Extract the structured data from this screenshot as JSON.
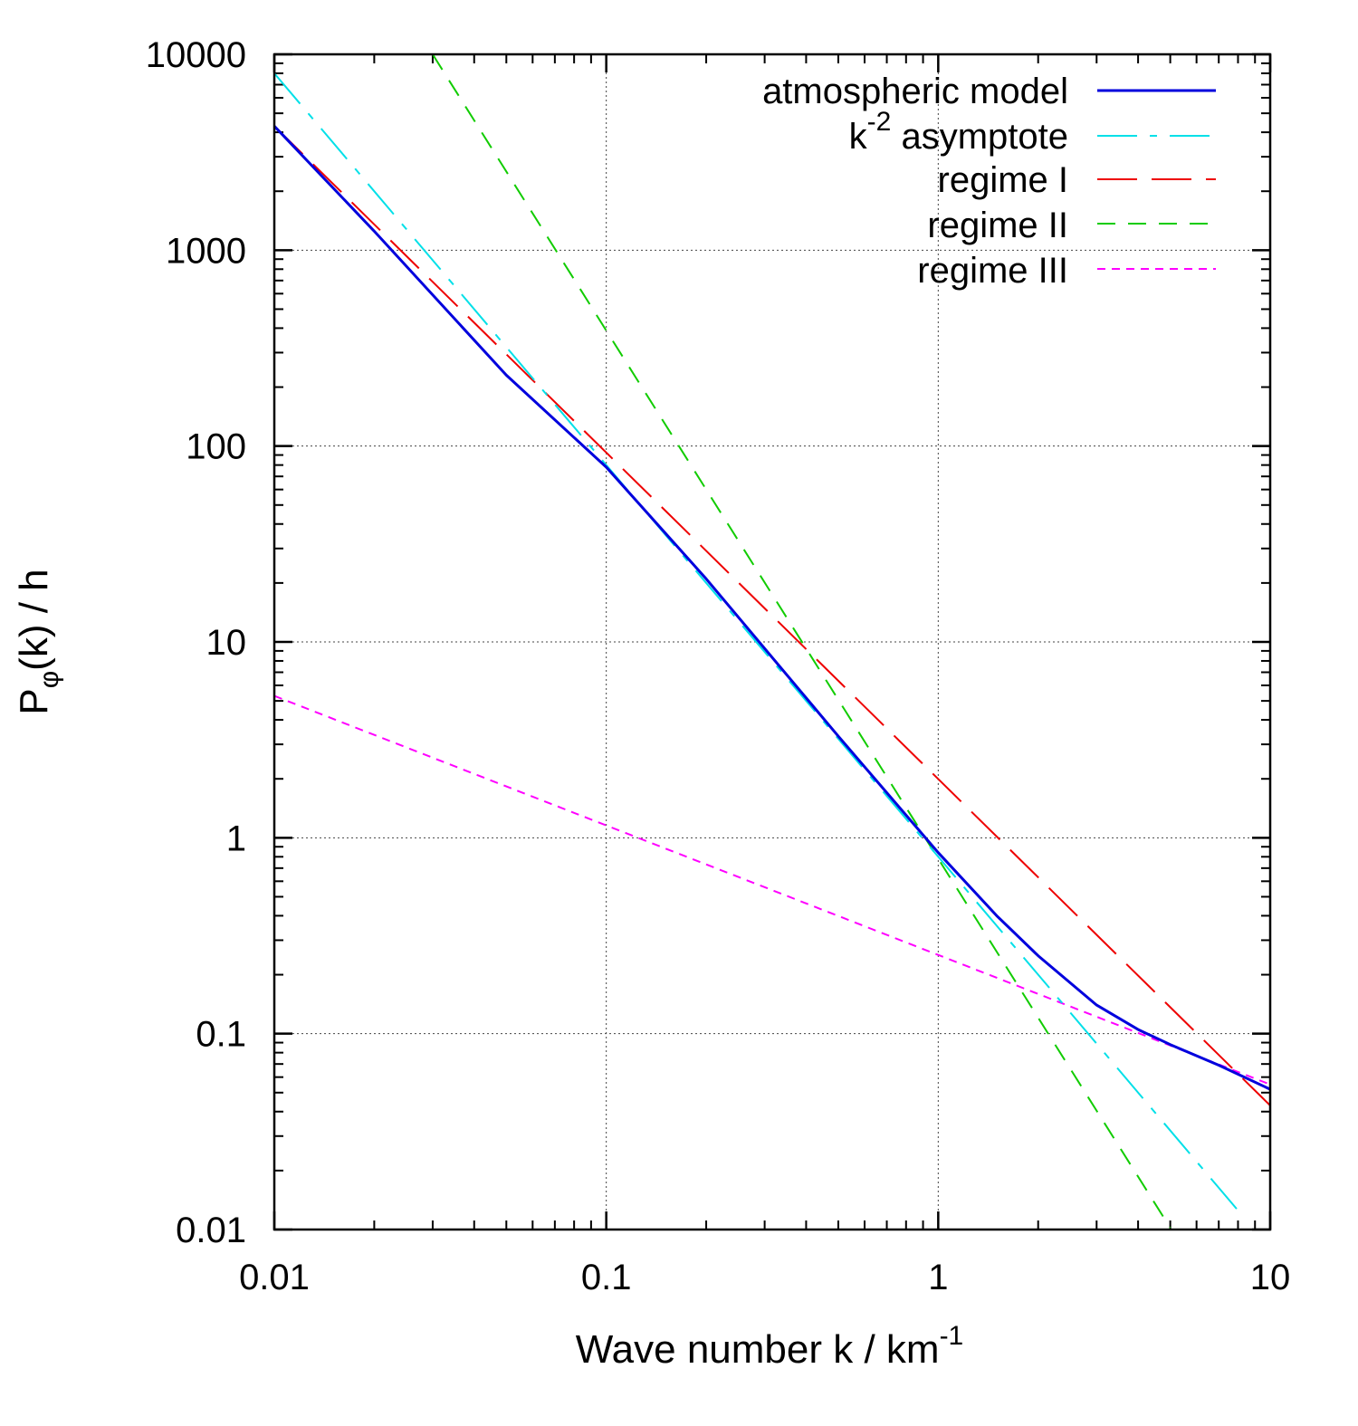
{
  "chart_data": {
    "type": "line",
    "scale": {
      "x": "log",
      "y": "log"
    },
    "xlabel": {
      "main": "Wave number k / km",
      "sup": "-1"
    },
    "ylabel": {
      "main": "P",
      "sub": "φ",
      "rest": "(k) / h"
    },
    "xlim": [
      0.01,
      10
    ],
    "ylim": [
      0.01,
      10000
    ],
    "grid": true,
    "legend_position": "top-right",
    "x_ticks": [
      {
        "value": 0.01,
        "label": "0.01"
      },
      {
        "value": 0.1,
        "label": "0.1"
      },
      {
        "value": 1,
        "label": "1"
      },
      {
        "value": 10,
        "label": "10"
      }
    ],
    "y_ticks": [
      {
        "value": 0.01,
        "label": "0.01"
      },
      {
        "value": 0.1,
        "label": "0.1"
      },
      {
        "value": 1,
        "label": "1"
      },
      {
        "value": 10,
        "label": "10"
      },
      {
        "value": 100,
        "label": "100"
      },
      {
        "value": 1000,
        "label": "1000"
      },
      {
        "value": 10000,
        "label": "10000"
      }
    ],
    "series": [
      {
        "name": "atmospheric model",
        "color": "#0000dd",
        "style": "solid",
        "x": [
          0.01,
          0.02,
          0.05,
          0.1,
          0.2,
          0.5,
          1,
          1.5,
          2,
          3,
          4,
          5,
          7,
          10
        ],
        "y": [
          4300,
          1250,
          230,
          78,
          21,
          3.3,
          0.84,
          0.4,
          0.25,
          0.14,
          0.105,
          0.088,
          0.069,
          0.052
        ]
      },
      {
        "name": "k^-2 asymptote",
        "legend_main": "k",
        "legend_sup": "-2",
        "legend_rest": " asymptote",
        "color": "#00e0e8",
        "style": "dashdot",
        "x": [
          0.01,
          8
        ],
        "y": [
          8000,
          0.0125
        ]
      },
      {
        "name": "regime I",
        "color": "#ee0000",
        "style": "longdash",
        "x": [
          0.01,
          10
        ],
        "y": [
          4300,
          0.043
        ]
      },
      {
        "name": "regime II",
        "color": "#11cc00",
        "style": "dash",
        "x": [
          0.03,
          5
        ],
        "y": [
          10000,
          0.0102
        ]
      },
      {
        "name": "regime III",
        "color": "#ff00ff",
        "style": "shortdash",
        "x": [
          0.01,
          10
        ],
        "y": [
          5.3,
          0.055
        ]
      }
    ]
  }
}
